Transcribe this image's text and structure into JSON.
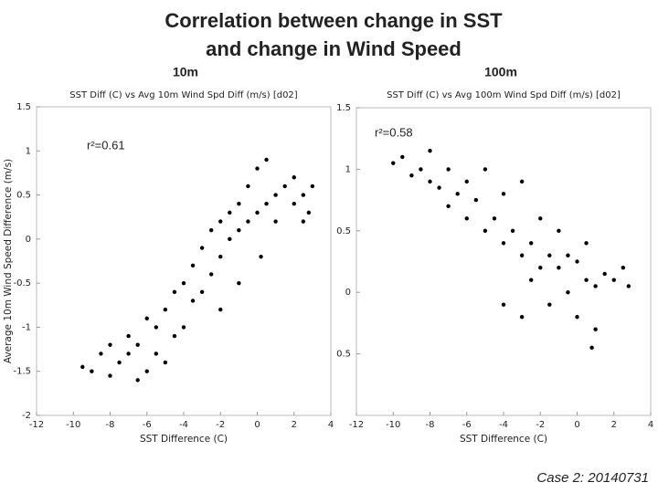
{
  "title": "Correlation between change in SST and change in Wind Speed",
  "panel_labels": [
    "10m",
    "100m"
  ],
  "footer": "Case 2: 20140731",
  "chart_data": [
    {
      "type": "scatter",
      "title": "SST Diff (C) vs Avg 10m Wind Spd Diff (m/s) [d02]",
      "x_label": "SST Difference (C)",
      "y_label": "Average 10m Wind Speed Difference (m/s)",
      "annotation": "r²=0.61",
      "color": "#000000",
      "xlim": [
        -12,
        4
      ],
      "xticks": [
        -12,
        -10,
        -8,
        -6,
        -4,
        -2,
        0,
        2,
        4
      ],
      "ylim": [
        -2,
        1.5
      ],
      "yticks": [
        -2,
        -1.5,
        -1,
        -0.5,
        0,
        0.5,
        1,
        1.5
      ],
      "x": [
        -9.5,
        -9,
        -8.5,
        -8,
        -8,
        -7.5,
        -7,
        -7,
        -6.5,
        -6.5,
        -6,
        -6,
        -5.5,
        -5.5,
        -5,
        -5,
        -4.5,
        -4.5,
        -4,
        -4,
        -3.5,
        -3.5,
        -3,
        -3,
        -2.5,
        -2.5,
        -2,
        -2,
        -1.5,
        -1.5,
        -1,
        -1,
        -0.5,
        -0.5,
        0,
        0,
        0.5,
        0.5,
        1,
        1,
        1.5,
        2,
        2,
        2.5,
        2.5,
        3,
        2.8,
        -1,
        -2,
        0.2
      ],
      "values": [
        -1.45,
        -1.5,
        -1.3,
        -1.2,
        -1.55,
        -1.4,
        -1.3,
        -1.1,
        -1.6,
        -1.2,
        -1.5,
        -0.9,
        -1.3,
        -1.0,
        -1.4,
        -0.8,
        -1.1,
        -0.6,
        -1.0,
        -0.5,
        -0.7,
        -0.3,
        -0.6,
        -0.1,
        -0.4,
        0.1,
        -0.2,
        0.2,
        0,
        0.3,
        0.1,
        0.4,
        0.2,
        0.6,
        0.3,
        0.8,
        0.4,
        0.9,
        0.5,
        0.2,
        0.6,
        0.4,
        0.7,
        0.5,
        0.2,
        0.6,
        0.3,
        -0.5,
        -0.8,
        -0.2
      ]
    },
    {
      "type": "scatter",
      "title": "SST Diff (C) vs Avg 100m Wind Spd Diff (m/s) [d02]",
      "x_label": "SST Difference (C)",
      "annotation": "r²=0.58",
      "color": "#000000",
      "xlim": [
        -12,
        4
      ],
      "xticks": [
        -12,
        -10,
        -8,
        -6,
        -4,
        -2,
        0,
        2,
        4
      ],
      "ylim": [
        -1,
        1.5
      ],
      "yticks": [
        {
          "value": -0.5,
          "label": "0.5"
        },
        0,
        0.5,
        1,
        1.5
      ],
      "x": [
        -10,
        -9.5,
        -9,
        -8.5,
        -8,
        -8,
        -7.5,
        -7,
        -7,
        -6.5,
        -6,
        -6,
        -5.5,
        -5,
        -5,
        -4.5,
        -4,
        -4,
        -3.5,
        -3,
        -3,
        -2.5,
        -2.5,
        -2,
        -2,
        -1.5,
        -1.5,
        -1,
        -1,
        -0.5,
        -0.5,
        0,
        0,
        0.5,
        0.5,
        1,
        1,
        1.5,
        2,
        2.5,
        2.8,
        -3,
        -4,
        0.8
      ],
      "values": [
        1.05,
        1.1,
        0.95,
        1.0,
        0.9,
        1.15,
        0.85,
        1.0,
        0.7,
        0.8,
        0.9,
        0.6,
        0.75,
        0.5,
        1.0,
        0.6,
        0.4,
        0.8,
        0.5,
        0.3,
        0.9,
        0.4,
        0.1,
        0.2,
        0.6,
        0.3,
        -0.1,
        0.2,
        0.5,
        0.3,
        0,
        0.25,
        -0.2,
        0.1,
        0.4,
        0.05,
        -0.3,
        0.15,
        0.1,
        0.2,
        0.05,
        -0.2,
        -0.1,
        -0.45
      ]
    }
  ]
}
